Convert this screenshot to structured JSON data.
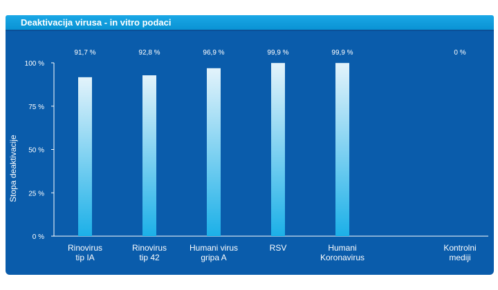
{
  "header": {
    "title": "Deaktivacija virusa - in vitro podaci"
  },
  "colors": {
    "panel": "#0a5cab",
    "header": "#12a0df",
    "bar_top": "#e3f3fb",
    "bar_bottom": "#1cb0e8"
  },
  "chart_data": {
    "type": "bar",
    "ylabel": "Stopa deaktivacije",
    "ylim": [
      0,
      100
    ],
    "yticks": [
      "0 %",
      "25 %",
      "50 %",
      "75 %",
      "100 %"
    ],
    "ytick_values": [
      0,
      25,
      50,
      75,
      100
    ],
    "categories": [
      [
        "Rinovirus",
        "tip IA"
      ],
      [
        "Rinovirus",
        "tip 42"
      ],
      [
        "Humani virus",
        "gripa A"
      ],
      [
        "RSV"
      ],
      [
        "Humani",
        "Koronavirus"
      ],
      [
        "Kontrolni",
        "mediji"
      ]
    ],
    "values": [
      91.7,
      92.8,
      96.9,
      99.9,
      99.9,
      0
    ],
    "value_labels": [
      "91,7 %",
      "92,8 %",
      "96,9 %",
      "99,9 %",
      "99,9 %",
      "0 %"
    ],
    "grid": false,
    "legend": "none"
  }
}
